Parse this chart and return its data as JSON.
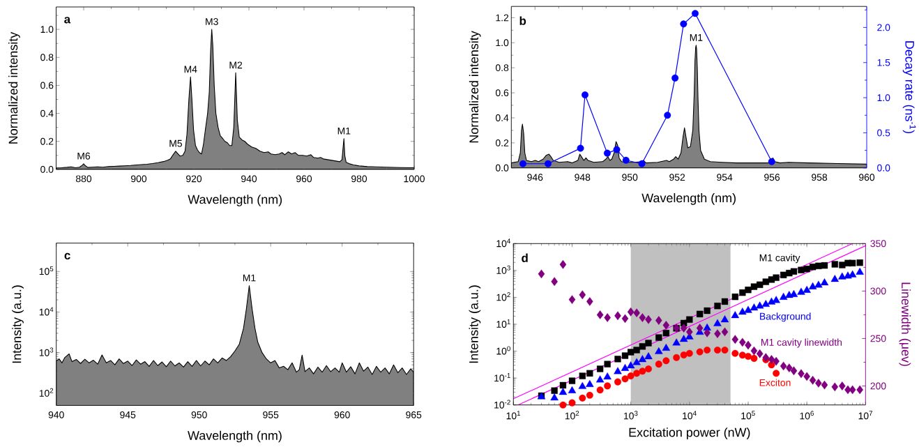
{
  "chart_data": [
    {
      "type": "area",
      "title": "a",
      "xlabel": "Wavelength (nm)",
      "ylabel": "Normalized intensity",
      "x": [
        870,
        872,
        874,
        875.5,
        877,
        878.5,
        879.5,
        880,
        880.5,
        881.5,
        883,
        885,
        887,
        889,
        891,
        893,
        895,
        897,
        899,
        901,
        903,
        905,
        907,
        909,
        910.5,
        911.5,
        912.3,
        913.4,
        914.3,
        915,
        916,
        916.8,
        917.5,
        918.2,
        918.8,
        919.3,
        919.9,
        920.6,
        921.3,
        922,
        922.8,
        923.5,
        924.3,
        925,
        925.6,
        926.1,
        926.5,
        926.9,
        927.4,
        928,
        928.8,
        929.6,
        930.5,
        931.3,
        932.2,
        933,
        933.8,
        934.5,
        935.2,
        935.8,
        936.5,
        937.5,
        938.5,
        939.5,
        941,
        942.5,
        944,
        945.5,
        947,
        948,
        949.5,
        951,
        952,
        953,
        954.3,
        955.5,
        956.8,
        958,
        959.5,
        961,
        962.5,
        963.5,
        965,
        966,
        967,
        968.5,
        970,
        971.5,
        973,
        973.8,
        974.2,
        974.5,
        974.8,
        975.3,
        976.5,
        978,
        980,
        983,
        986,
        990,
        995,
        1000
      ],
      "values": [
        0.01,
        0.012,
        0.015,
        0.018,
        0.012,
        0.016,
        0.03,
        0.04,
        0.028,
        0.014,
        0.016,
        0.018,
        0.016,
        0.02,
        0.022,
        0.024,
        0.026,
        0.028,
        0.031,
        0.034,
        0.037,
        0.042,
        0.048,
        0.056,
        0.065,
        0.075,
        0.1,
        0.13,
        0.11,
        0.095,
        0.1,
        0.13,
        0.25,
        0.5,
        0.66,
        0.5,
        0.28,
        0.17,
        0.14,
        0.12,
        0.11,
        0.18,
        0.3,
        0.4,
        0.55,
        0.85,
        1.0,
        0.88,
        0.6,
        0.4,
        0.3,
        0.24,
        0.22,
        0.2,
        0.19,
        0.17,
        0.17,
        0.3,
        0.69,
        0.35,
        0.23,
        0.21,
        0.2,
        0.18,
        0.16,
        0.15,
        0.13,
        0.12,
        0.125,
        0.11,
        0.105,
        0.11,
        0.12,
        0.105,
        0.125,
        0.11,
        0.12,
        0.1,
        0.1,
        0.095,
        0.105,
        0.085,
        0.08,
        0.085,
        0.075,
        0.07,
        0.065,
        0.06,
        0.055,
        0.07,
        0.16,
        0.22,
        0.1,
        0.05,
        0.04,
        0.032,
        0.025,
        0.02,
        0.018,
        0.016,
        0.013,
        0.012
      ],
      "color": "#808080",
      "xlim": [
        870,
        1000
      ],
      "ylim": [
        0,
        1.16
      ],
      "xticks": [
        880,
        900,
        920,
        940,
        960,
        980,
        1000,
        {
          "value": 890,
          "label": null
        },
        {
          "value": 910,
          "label": null
        },
        {
          "value": 930,
          "label": null
        },
        {
          "value": 950,
          "label": null
        },
        {
          "value": 970,
          "label": null
        },
        {
          "value": 990,
          "label": null
        }
      ],
      "yticks": [
        {
          "value": 0,
          "label": "0.0"
        },
        0.2,
        0.4,
        0.6,
        0.8,
        {
          "value": 1,
          "label": "1.0"
        },
        {
          "value": 0.1,
          "label": null
        },
        {
          "value": 0.3,
          "label": null
        },
        {
          "value": 0.5,
          "label": null
        },
        {
          "value": 0.7,
          "label": null
        },
        {
          "value": 0.9,
          "label": null
        },
        {
          "value": 1.1,
          "label": null
        }
      ],
      "annotations": [
        {
          "text": "M6",
          "x": 880,
          "y": 0.04
        },
        {
          "text": "M5",
          "x": 913.4,
          "y": 0.13
        },
        {
          "text": "M4",
          "x": 918.8,
          "y": 0.66
        },
        {
          "text": "M3",
          "x": 926.5,
          "y": 1.0
        },
        {
          "text": "M2",
          "x": 935.2,
          "y": 0.69
        },
        {
          "text": "M1",
          "x": 974.5,
          "y": 0.22
        }
      ]
    },
    {
      "type": "area",
      "title": "b",
      "xlabel": "Wavelength (nm)",
      "ylabel": "Normalized intensity",
      "y2label": "Decay rate (ns$^{-1}$)",
      "series": [
        {
          "type": "area",
          "color": "#808080",
          "x": [
            945.0,
            945.29,
            945.38,
            945.43,
            945.47,
            945.52,
            945.57,
            945.64,
            945.84,
            946.01,
            946.15,
            946.34,
            946.47,
            946.59,
            946.67,
            946.77,
            947.02,
            947.38,
            947.57,
            947.81,
            947.89,
            947.96,
            948.06,
            948.15,
            948.24,
            948.48,
            948.85,
            948.99,
            949.08,
            949.16,
            949.24,
            949.34,
            949.42,
            949.49,
            949.55,
            949.65,
            949.89,
            950.2,
            950.51,
            950.57,
            950.69,
            951.18,
            951.55,
            951.67,
            951.85,
            951.94,
            952.04,
            952.16,
            952.25,
            952.31,
            952.37,
            952.45,
            952.56,
            952.66,
            952.72,
            952.75,
            952.78,
            952.8,
            952.82,
            952.85,
            952.88,
            952.92,
            952.99,
            953.15,
            953.4,
            953.89,
            954.5,
            955.11,
            955.85,
            955.97,
            956.04,
            956.11,
            956.34,
            956.7,
            957.56,
            958.78,
            960.0
          ],
          "values": [
            0.04,
            0.05,
            0.12,
            0.3,
            0.35,
            0.28,
            0.12,
            0.06,
            0.05,
            0.06,
            0.05,
            0.07,
            0.1,
            0.11,
            0.09,
            0.06,
            0.045,
            0.05,
            0.04,
            0.06,
            0.11,
            0.09,
            0.06,
            0.08,
            0.06,
            0.045,
            0.05,
            0.07,
            0.09,
            0.06,
            0.07,
            0.12,
            0.21,
            0.18,
            0.08,
            0.05,
            0.045,
            0.045,
            0.05,
            0.06,
            0.04,
            0.045,
            0.06,
            0.05,
            0.07,
            0.09,
            0.07,
            0.12,
            0.25,
            0.32,
            0.25,
            0.16,
            0.17,
            0.3,
            0.6,
            0.85,
            0.96,
            0.98,
            0.95,
            0.8,
            0.55,
            0.3,
            0.14,
            0.07,
            0.05,
            0.045,
            0.04,
            0.04,
            0.04,
            0.06,
            0.08,
            0.05,
            0.04,
            0.045,
            0.04,
            0.035,
            0.03
          ]
        },
        {
          "type": "line",
          "axis": "y2",
          "color": "#0000ff",
          "marker": "circle",
          "x": [
            945.49,
            946.55,
            947.92,
            948.11,
            949.05,
            949.45,
            949.84,
            950.51,
            951.59,
            951.91,
            952.27,
            952.76,
            955.99
          ],
          "values": [
            0.06,
            0.06,
            0.28,
            1.04,
            0.21,
            0.26,
            0.11,
            0.06,
            0.75,
            1.28,
            2.05,
            2.2,
            0.09
          ]
        }
      ],
      "xlim": [
        945,
        960
      ],
      "ylim": [
        0,
        1.29
      ],
      "y2lim": [
        0,
        2.3
      ],
      "xticks": [
        946,
        948,
        950,
        952,
        954,
        956,
        958,
        960,
        {
          "value": 947,
          "label": null
        },
        {
          "value": 949,
          "label": null
        },
        {
          "value": 951,
          "label": null
        },
        {
          "value": 953,
          "label": null
        },
        {
          "value": 955,
          "label": null
        },
        {
          "value": 957,
          "label": null
        },
        {
          "value": 959,
          "label": null
        }
      ],
      "yticks": [
        {
          "value": 0,
          "label": "0.0"
        },
        0.2,
        0.4,
        0.6,
        0.8,
        {
          "value": 1,
          "label": "1.0"
        },
        1.2,
        {
          "value": 0.1,
          "label": null
        },
        {
          "value": 0.3,
          "label": null
        },
        {
          "value": 0.5,
          "label": null
        },
        {
          "value": 0.7,
          "label": null
        },
        {
          "value": 0.9,
          "label": null
        },
        {
          "value": 1.1,
          "label": null
        }
      ],
      "y2ticks": [
        {
          "value": 0,
          "label": "0.0"
        },
        0.5,
        {
          "value": 1,
          "label": "1.0"
        },
        1.5,
        {
          "value": 2,
          "label": "2.0"
        },
        {
          "value": 0.25,
          "label": null
        },
        {
          "value": 0.75,
          "label": null
        },
        {
          "value": 1.25,
          "label": null
        },
        {
          "value": 1.75,
          "label": null
        },
        {
          "value": 2.25,
          "label": null
        }
      ],
      "annotations": [
        {
          "text": "M1",
          "x": 952.8,
          "y": 0.98
        }
      ]
    },
    {
      "type": "area",
      "title": "c",
      "xlabel": "Wavelength (nm)",
      "ylabel": "Intensity (a.u.)",
      "log": "y",
      "x": [
        940.0,
        940.2,
        940.4,
        940.6,
        940.9,
        941.1,
        941.4,
        941.7,
        942.0,
        942.3,
        942.6,
        942.9,
        943.2,
        943.5,
        943.8,
        944.1,
        944.4,
        944.7,
        945.0,
        945.3,
        945.6,
        945.9,
        946.2,
        946.5,
        946.8,
        947.1,
        947.4,
        947.7,
        948.0,
        948.3,
        948.6,
        948.9,
        949.2,
        949.5,
        949.8,
        950.1,
        950.4,
        950.7,
        951.0,
        951.3,
        951.6,
        951.9,
        952.2,
        952.5,
        952.8,
        953.1,
        953.3,
        953.5,
        953.7,
        953.9,
        954.1,
        954.4,
        954.7,
        955.0,
        955.3,
        955.6,
        955.9,
        956.2,
        956.5,
        956.8,
        957.0,
        957.2,
        957.4,
        957.7,
        958.0,
        958.3,
        958.6,
        958.9,
        959.2,
        959.5,
        959.8,
        960.0,
        960.3,
        960.6,
        960.9,
        961.2,
        961.5,
        961.8,
        962.1,
        962.4,
        962.7,
        963.0,
        963.3,
        963.6,
        963.9,
        964.2,
        964.5,
        964.8,
        965.0
      ],
      "values": [
        620,
        700,
        560,
        760,
        930,
        600,
        680,
        540,
        690,
        560,
        650,
        520,
        880,
        560,
        640,
        500,
        700,
        540,
        620,
        480,
        660,
        520,
        600,
        460,
        640,
        480,
        590,
        450,
        620,
        470,
        560,
        440,
        600,
        460,
        640,
        470,
        620,
        500,
        700,
        560,
        740,
        640,
        800,
        1100,
        1600,
        4000,
        12000,
        45000,
        12000,
        4000,
        1800,
        1000,
        700,
        560,
        640,
        420,
        460,
        380,
        560,
        330,
        380,
        870,
        340,
        420,
        300,
        440,
        330,
        480,
        340,
        420,
        330,
        560,
        330,
        450,
        300,
        560,
        350,
        440,
        290,
        460,
        330,
        420,
        300,
        500,
        320,
        420,
        290,
        400,
        330
      ],
      "color": "#808080",
      "xlim": [
        940,
        965
      ],
      "ylim": [
        50,
        500000
      ],
      "xticks": [
        940,
        945,
        950,
        955,
        960,
        965,
        {
          "value": 942.5,
          "label": null
        },
        {
          "value": 947.5,
          "label": null
        },
        {
          "value": 952.5,
          "label": null
        },
        {
          "value": 957.5,
          "label": null
        },
        {
          "value": 962.5,
          "label": null
        }
      ],
      "yticks": [
        {
          "value": 100,
          "label": "10$^{2}$"
        },
        {
          "value": 1000,
          "label": "10$^{3}$"
        },
        {
          "value": 10000,
          "label": "10$^{4}$"
        },
        {
          "value": 100000,
          "label": "10$^{5}$"
        }
      ],
      "annotations": [
        {
          "text": "M1",
          "x": 953.5,
          "y": 45000
        }
      ]
    },
    {
      "type": "scatter",
      "title": "d",
      "xlabel": "Excitation power (nW)",
      "ylabel": "Intensity (a.u.)",
      "y2label": "Linewidth (μev)",
      "log": "xy",
      "series": [
        {
          "name": "M1 cavity",
          "color": "#000000",
          "marker": "square",
          "x": [
            30,
            50,
            70,
            100,
            150,
            200,
            300,
            400,
            600,
            800,
            1000,
            1260,
            1580,
            2000,
            3000,
            4000,
            6000,
            8000,
            10000,
            15000,
            20000,
            30000,
            40000,
            60000,
            80000,
            100000,
            126000,
            158000,
            200000,
            250000,
            300000,
            400000,
            500000,
            600000,
            800000,
            1000000,
            1260000,
            1580000,
            2000000,
            3000000,
            4000000,
            5000000,
            6000000,
            8000000
          ],
          "values": [
            0.022,
            0.034,
            0.054,
            0.079,
            0.12,
            0.15,
            0.22,
            0.33,
            0.51,
            0.68,
            0.92,
            1.1,
            1.5,
            2.0,
            3.2,
            4.7,
            7.1,
            11,
            15,
            24,
            32,
            48,
            70,
            105,
            150,
            190,
            250,
            295,
            380,
            460,
            540,
            680,
            800,
            920,
            1040,
            1140,
            1360,
            1480,
            1540,
            1700,
            1600,
            1880,
            1880,
            1950
          ]
        },
        {
          "name": "Background",
          "color": "#0000ff",
          "marker": "triangle",
          "x": [
            30,
            50,
            70,
            100,
            150,
            200,
            300,
            400,
            600,
            800,
            1000,
            1260,
            1580,
            2000,
            3000,
            4000,
            6000,
            8000,
            10000,
            15000,
            20000,
            30000,
            40000,
            60000,
            80000,
            100000,
            126000,
            158000,
            200000,
            250000,
            300000,
            400000,
            500000,
            600000,
            800000,
            1000000,
            1260000,
            1580000,
            2000000,
            3000000,
            4000000,
            5000000,
            6000000,
            8000000
          ],
          "values": [
            0.022,
            0.02,
            0.032,
            0.037,
            0.053,
            0.063,
            0.093,
            0.12,
            0.19,
            0.25,
            0.31,
            0.41,
            0.53,
            0.68,
            1.05,
            1.4,
            2.2,
            3.0,
            3.7,
            5.5,
            7.9,
            11.5,
            16,
            23,
            31,
            36,
            44,
            52,
            60,
            73,
            84,
            110,
            130,
            140,
            170,
            200,
            270,
            310,
            380,
            510,
            630,
            680,
            750,
            940
          ]
        },
        {
          "name": "Exciton",
          "color": "#ff0000",
          "marker": "circle",
          "x": [
            70,
            100,
            150,
            200,
            300,
            400,
            600,
            800,
            1000,
            1260,
            1580,
            2000,
            3000,
            4000,
            6000,
            8000,
            10000,
            15000,
            20000,
            30000,
            40000,
            60000,
            80000,
            100000,
            126000,
            200000,
            250000,
            300000
          ],
          "values": [
            0.01,
            0.012,
            0.018,
            0.023,
            0.036,
            0.051,
            0.072,
            0.093,
            0.12,
            0.15,
            0.18,
            0.22,
            0.33,
            0.44,
            0.58,
            0.72,
            0.83,
            0.94,
            1.1,
            1.1,
            1.1,
            0.83,
            0.71,
            0.64,
            0.54,
            0.48,
            0.31,
            0.15
          ]
        },
        {
          "name": "M1 cavity linewidth",
          "color": "#800080",
          "marker": "diamond",
          "axis": "y2",
          "x": [
            30,
            50,
            70,
            100,
            150,
            200,
            300,
            400,
            600,
            800,
            1000,
            1260,
            1580,
            2000,
            3000,
            4000,
            6000,
            8000,
            10000,
            15000,
            20000,
            30000,
            40000,
            60000,
            80000,
            100000,
            126000,
            158000,
            200000,
            250000,
            300000,
            400000,
            500000,
            600000,
            800000,
            1000000,
            1260000,
            1580000,
            2000000,
            3000000,
            4000000,
            5000000,
            6000000,
            8000000
          ],
          "values": [
            318,
            310,
            328,
            291,
            296,
            289,
            275,
            272,
            274,
            271,
            278,
            277,
            272,
            270,
            269,
            264,
            261,
            261,
            257,
            261,
            256,
            255,
            257,
            249,
            246,
            243,
            237,
            234,
            230,
            228,
            226,
            221,
            219,
            216,
            213,
            210,
            206,
            203,
            201,
            199,
            200,
            196,
            196,
            196
          ]
        },
        {
          "type": "line",
          "color": "#ff00ff",
          "x": [
            10,
            6000000
          ],
          "values": [
            0.017,
            10000
          ]
        },
        {
          "type": "line",
          "color": "#ff00ff",
          "x": [
            12,
            10000000
          ],
          "values": [
            0.01,
            8300
          ]
        }
      ],
      "bands": [
        {
          "axis": "x",
          "from": 1000,
          "to": 50000,
          "color": "#c0c0c0"
        }
      ],
      "xlim": [
        10,
        10000000
      ],
      "ylim": [
        0.01,
        10000
      ],
      "y2lim": [
        180,
        350
      ],
      "xticks": [
        {
          "value": 10,
          "label": "10$^{1}$"
        },
        {
          "value": 100,
          "label": "10$^{2}$"
        },
        {
          "value": 1000,
          "label": "10$^{3}$"
        },
        {
          "value": 10000,
          "label": "10$^{4}$"
        },
        {
          "value": 100000,
          "label": "10$^{5}$"
        },
        {
          "value": 1000000,
          "label": "10$^{6}$"
        },
        {
          "value": 10000000,
          "label": "10$^{7}$"
        }
      ],
      "yticks": [
        {
          "value": 0.01,
          "label": "10$^{-2}$"
        },
        {
          "value": 0.1,
          "label": "10$^{-1}$"
        },
        {
          "value": 1,
          "label": "10$^{0}$"
        },
        {
          "value": 10,
          "label": "10$^{1}$"
        },
        {
          "value": 100,
          "label": "10$^{2}$"
        },
        {
          "value": 1000,
          "label": "10$^{3}$"
        },
        {
          "value": 10000,
          "label": "10$^{4}$"
        }
      ],
      "y2ticks": [
        200,
        250,
        300,
        350,
        {
          "value": 225,
          "label": null
        },
        {
          "value": 275,
          "label": null
        },
        {
          "value": 325,
          "label": null
        }
      ]
    }
  ]
}
